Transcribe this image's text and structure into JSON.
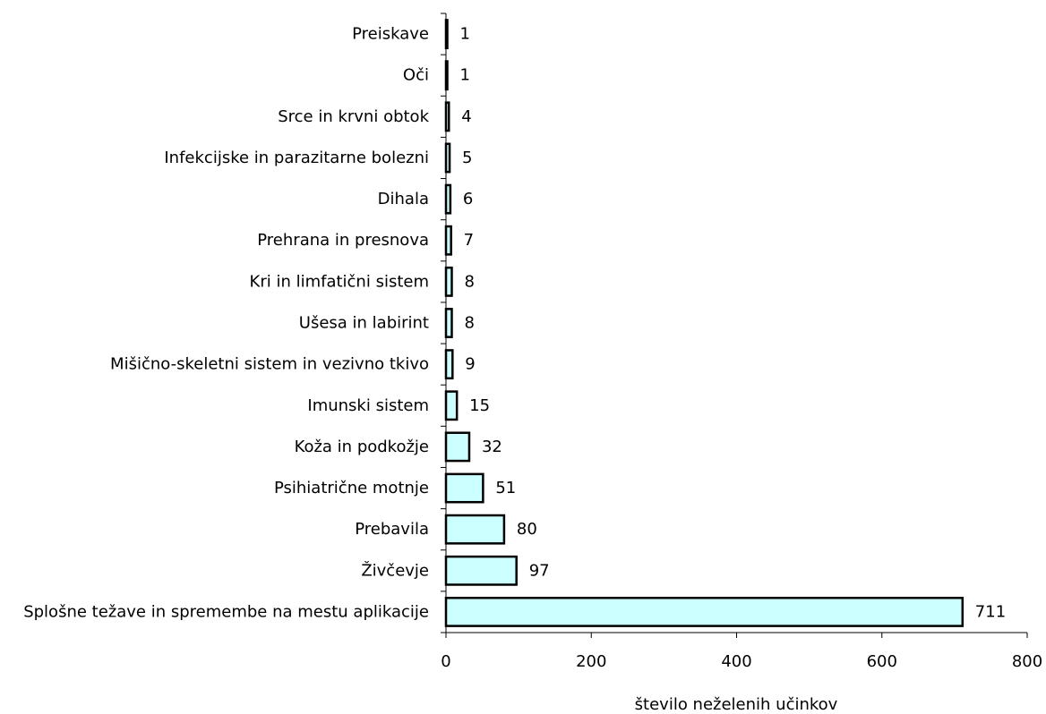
{
  "chart_data": {
    "type": "bar",
    "orientation": "horizontal",
    "categories": [
      "Preiskave",
      "Oči",
      "Srce in krvni obtok",
      "Infekcijske in parazitarne bolezni",
      "Dihala",
      "Prehrana in presnova",
      "Kri in limfatični sistem",
      "Ušesa in labirint",
      "Mišično-skeletni sistem in vezivno tkivo",
      "Imunski sistem",
      "Koža in podkožje",
      "Psihiatrične motnje",
      "Prebavila",
      "Živčevje",
      "Splošne težave in spremembe na mestu aplikacije"
    ],
    "values": [
      1,
      1,
      4,
      5,
      6,
      7,
      8,
      8,
      9,
      15,
      32,
      51,
      80,
      97,
      711
    ],
    "xlabel": "število neželenih učinkov",
    "ylabel": "",
    "xlim": [
      0,
      800
    ],
    "xticks": [
      "0",
      "200",
      "400",
      "600",
      "800"
    ],
    "bar_color": "#ccffff",
    "edge_color": "#000000",
    "grid": false,
    "legend": "none"
  }
}
